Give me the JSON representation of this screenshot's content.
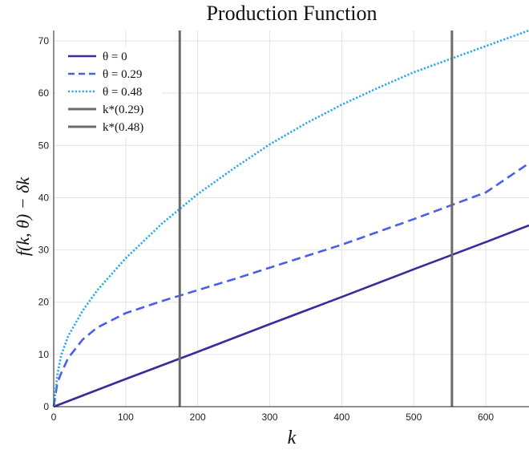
{
  "chart_data": {
    "type": "line",
    "title": "Production Function",
    "xlabel": "k",
    "ylabel": "f(k, θ) − δk",
    "xlim": [
      0,
      660
    ],
    "ylim": [
      0,
      72
    ],
    "xticks": [
      0,
      100,
      200,
      300,
      400,
      500,
      600
    ],
    "yticks": [
      0,
      10,
      20,
      30,
      40,
      50,
      60,
      70
    ],
    "grid": true,
    "legend_position": "top-left",
    "series": [
      {
        "name": "θ = 0",
        "color": "#3b2a9e",
        "style": "solid",
        "x": [
          0,
          100,
          200,
          300,
          400,
          500,
          600,
          660
        ],
        "y": [
          0,
          5.3,
          10.5,
          15.8,
          21.0,
          26.3,
          31.5,
          34.7
        ]
      },
      {
        "name": "θ = 0.29",
        "color": "#4a5ee8",
        "style": "dashed",
        "x": [
          0,
          5,
          10,
          20,
          40,
          60,
          100,
          150,
          200,
          250,
          300,
          400,
          500,
          600,
          660
        ],
        "y": [
          0,
          4.5,
          6.3,
          9.3,
          12.8,
          15.1,
          17.9,
          20.2,
          22.3,
          24.4,
          26.6,
          31.0,
          35.9,
          41.0,
          46.6
        ]
      },
      {
        "name": "θ = 0.48",
        "color": "#2aa8e8",
        "style": "dotted",
        "x": [
          0,
          5,
          10,
          20,
          40,
          60,
          100,
          150,
          200,
          250,
          300,
          350,
          400,
          450,
          500,
          550,
          600,
          660
        ],
        "y": [
          0,
          6.0,
          9.7,
          13.5,
          18.3,
          22.2,
          28.4,
          35.0,
          40.7,
          45.6,
          50.2,
          54.2,
          57.8,
          61.0,
          64.0,
          66.5,
          69.0,
          72.0
        ]
      }
    ],
    "vlines": [
      {
        "name": "k*(0.29)",
        "x": 175,
        "color": "#6b6b6b"
      },
      {
        "name": "k*(0.48)",
        "x": 553,
        "color": "#6b6b6b"
      }
    ]
  }
}
